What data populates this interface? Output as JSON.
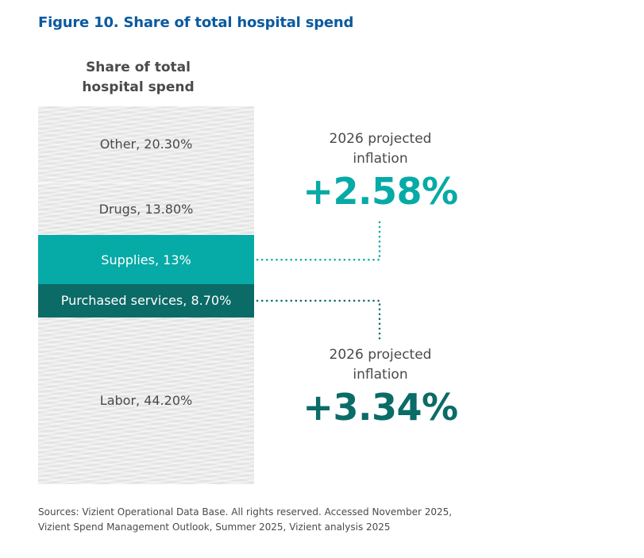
{
  "figure_title": "Figure 10. Share of total hospital spend",
  "colors": {
    "title": "#0a5aa0",
    "supplies": "#06aaa6",
    "purchased_services": "#0b6b67",
    "other_segments": "#ececec",
    "text": "#4a4a4a"
  },
  "chart_data": {
    "type": "bar",
    "subtype": "stacked-100-single-column",
    "title": "Share of total hospital spend",
    "unit": "%",
    "categories": [
      "Other",
      "Drugs",
      "Supplies",
      "Purchased services",
      "Labor"
    ],
    "values": [
      20.3,
      13.8,
      13,
      8.7,
      44.2
    ],
    "labels": [
      "Other, 20.30%",
      "Drugs, 13.80%",
      "Supplies, 13%",
      "Purchased services, 8.70%",
      "Labor, 44.20%"
    ],
    "annotations": [
      {
        "target": "Supplies",
        "label": "2026 projected inflation",
        "value": "+2.58%"
      },
      {
        "target": "Purchased services",
        "label": "2026 projected inflation",
        "value": "+3.34%"
      }
    ]
  },
  "bar_title_lines": [
    "Share of total",
    "hospital spend"
  ],
  "callouts": [
    {
      "label_lines": [
        "2026 projected",
        "inflation"
      ],
      "value": "+2.58%"
    },
    {
      "label_lines": [
        "2026 projected",
        "inflation"
      ],
      "value": "+3.34%"
    }
  ],
  "sources_lines": [
    "Sources: Vizient Operational Data Base. All rights reserved. Accessed November 2025,",
    "Vizient Spend Management Outlook, Summer 2025, Vizient analysis 2025"
  ]
}
